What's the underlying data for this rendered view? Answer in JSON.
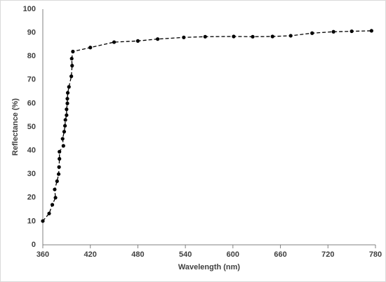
{
  "chart_data": {
    "type": "line",
    "x_label": "Wavelength (nm)",
    "y_label": "Reflectance (%)",
    "x": [
      360,
      368,
      372,
      376,
      375,
      378,
      380,
      380.5,
      381,
      381,
      386,
      385,
      387,
      388,
      388.5,
      390,
      390,
      391,
      391,
      391.5,
      393,
      396,
      397,
      396.5,
      398,
      420,
      450,
      480,
      505,
      538,
      565,
      601,
      625,
      650,
      673,
      700,
      727,
      750,
      775
    ],
    "series": [
      {
        "name": "Reflectance",
        "color": "#000000",
        "values": [
          10.1,
          13.3,
          17,
          20,
          23.5,
          27,
          30,
          33,
          36.5,
          39.5,
          42,
          45,
          48,
          50.5,
          53,
          55,
          57.5,
          60,
          62,
          64.5,
          67,
          71.5,
          76,
          79,
          82,
          83.7,
          86,
          86.5,
          87.3,
          88,
          88.3,
          88.4,
          88.3,
          88.4,
          88.7,
          89.8,
          90.4,
          90.6,
          90.8
        ]
      }
    ],
    "xlim": [
      360,
      780
    ],
    "xticks": [
      360,
      420,
      480,
      540,
      600,
      660,
      720,
      780
    ],
    "ylim": [
      0,
      100
    ],
    "yticks": [
      0,
      10,
      20,
      30,
      40,
      50,
      60,
      70,
      80,
      90,
      100
    ],
    "grid": false
  }
}
